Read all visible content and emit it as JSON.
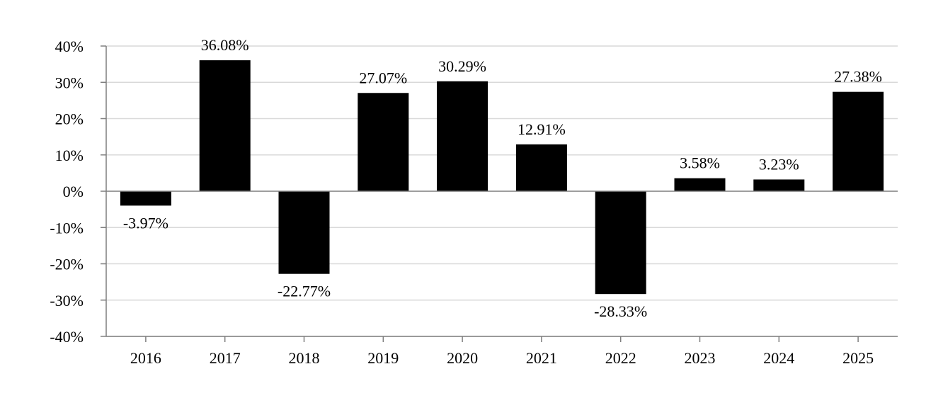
{
  "chart_data": {
    "type": "bar",
    "title": "",
    "xlabel": "",
    "ylabel": "",
    "categories": [
      "2016",
      "2017",
      "2018",
      "2019",
      "2020",
      "2021",
      "2022",
      "2023",
      "2024",
      "2025"
    ],
    "values": [
      -3.97,
      36.08,
      -22.77,
      27.07,
      30.29,
      12.91,
      -28.33,
      3.58,
      3.23,
      27.38
    ],
    "value_labels": [
      "-3.97%",
      "36.08%",
      "-22.77%",
      "27.07%",
      "30.29%",
      "12.91%",
      "-28.33%",
      "3.58%",
      "3.23%",
      "27.38%"
    ],
    "ylim": [
      -40,
      40
    ],
    "yticks": [
      40,
      30,
      20,
      10,
      0,
      -10,
      -20,
      -30,
      -40
    ],
    "ytick_labels": [
      "40%",
      "30%",
      "20%",
      "10%",
      "0%",
      "-10%",
      "-20%",
      "-30%",
      "-40%"
    ],
    "grid": true,
    "legend": "none",
    "colors": {
      "bar": "#000000",
      "grid": "#d9d9d9",
      "axis": "#7f7f7f"
    }
  }
}
